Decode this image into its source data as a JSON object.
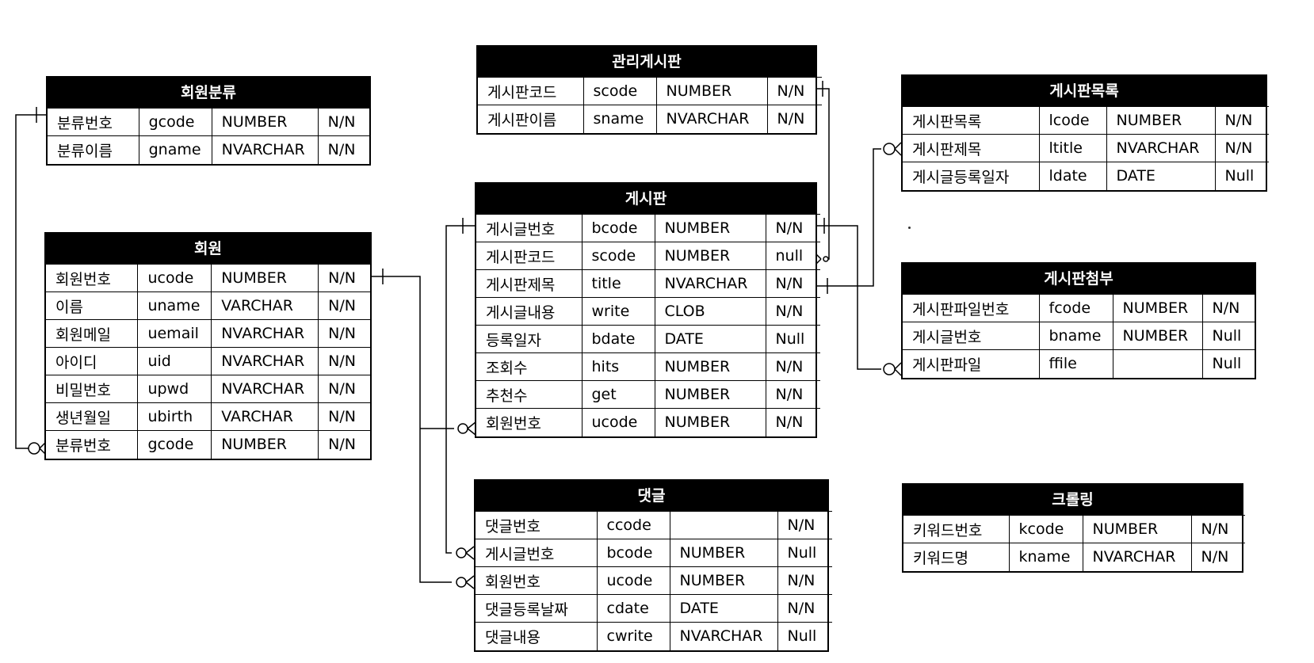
{
  "entities": [
    {
      "id": "member-category",
      "title": "회원분류",
      "cols": [
        110,
        88,
        128,
        62
      ],
      "rows": [
        [
          "분류번호",
          "gcode",
          "NUMBER",
          "N/N"
        ],
        [
          "분류이름",
          "gname",
          "NVARCHAR",
          "N/N"
        ]
      ]
    },
    {
      "id": "member",
      "title": "회원",
      "cols": [
        110,
        88,
        128,
        62
      ],
      "rows": [
        [
          "회원번호",
          "ucode",
          "NUMBER",
          "N/N"
        ],
        [
          "이름",
          "uname",
          "VARCHAR",
          "N/N"
        ],
        [
          "회원메일",
          "uemail",
          "NVARCHAR",
          "N/N"
        ],
        [
          "아이디",
          "uid",
          "NVARCHAR",
          "N/N"
        ],
        [
          "비밀번호",
          "upwd",
          "NVARCHAR",
          "N/N"
        ],
        [
          "생년월일",
          "ubirth",
          "VARCHAR",
          "N/N"
        ],
        [
          "분류번호",
          "gcode",
          "NUMBER",
          "N/N"
        ]
      ]
    },
    {
      "id": "admin-board",
      "title": "관리게시판",
      "cols": [
        133,
        92,
        140,
        69
      ],
      "rows": [
        [
          "게시판코드",
          "scode",
          "NUMBER",
          "N/N"
        ],
        [
          "게시판이름",
          "sname",
          "NVARCHAR",
          "N/N"
        ]
      ]
    },
    {
      "id": "board",
      "title": "게시판",
      "cols": [
        133,
        92,
        140,
        69
      ],
      "rows": [
        [
          "게시글번호",
          "bcode",
          "NUMBER",
          "N/N"
        ],
        [
          "게시판코드",
          "scode",
          "NUMBER",
          "null"
        ],
        [
          "게시판제목",
          "title",
          "NVARCHAR",
          "N/N"
        ],
        [
          "게시글내용",
          "write",
          "CLOB",
          "N/N"
        ],
        [
          "등록일자",
          "bdate",
          "DATE",
          "Null"
        ],
        [
          "조회수",
          "hits",
          "NUMBER",
          "N/N"
        ],
        [
          "추천수",
          "get",
          "NUMBER",
          "N/N"
        ],
        [
          "회원번호",
          "ucode",
          "NUMBER",
          "N/N"
        ]
      ]
    },
    {
      "id": "comment",
      "title": "댓글",
      "cols": [
        153,
        92,
        136,
        69
      ],
      "rows": [
        [
          "댓글번호",
          "ccode",
          "",
          "N/N"
        ],
        [
          "게시글번호",
          "bcode",
          "NUMBER",
          "Null"
        ],
        [
          "회원번호",
          "ucode",
          "NUMBER",
          "N/N"
        ],
        [
          "댓글등록날짜",
          "cdate",
          "DATE",
          "N/N"
        ],
        [
          "댓글내용",
          "cwrite",
          "NVARCHAR",
          "Null"
        ]
      ]
    },
    {
      "id": "board-list",
      "title": "게시판목록",
      "cols": [
        172,
        85,
        137,
        68
      ],
      "rows": [
        [
          "게시판목록",
          "lcode",
          "NUMBER",
          "N/N"
        ],
        [
          "게시판제목",
          "ltitle",
          "NVARCHAR",
          "N/N"
        ],
        [
          "게시글등록일자",
          "ldate",
          "DATE",
          "Null"
        ]
      ]
    },
    {
      "id": "board-attachment",
      "title": "게시판첨부",
      "cols": [
        172,
        93,
        113,
        68
      ],
      "rows": [
        [
          "게시판파일번호",
          "fcode",
          "NUMBER",
          "N/N"
        ],
        [
          "게시글번호",
          "bname",
          "NUMBER",
          "Null"
        ],
        [
          "게시판파일",
          "ffile",
          "",
          "Null"
        ]
      ]
    },
    {
      "id": "crawling",
      "title": "크롤링",
      "cols": [
        133,
        93,
        137,
        68
      ],
      "rows": [
        [
          "키워드번호",
          "kcode",
          "NUMBER",
          "N/N"
        ],
        [
          "키워드명",
          "kname",
          "NVARCHAR",
          "N/N"
        ]
      ]
    }
  ]
}
